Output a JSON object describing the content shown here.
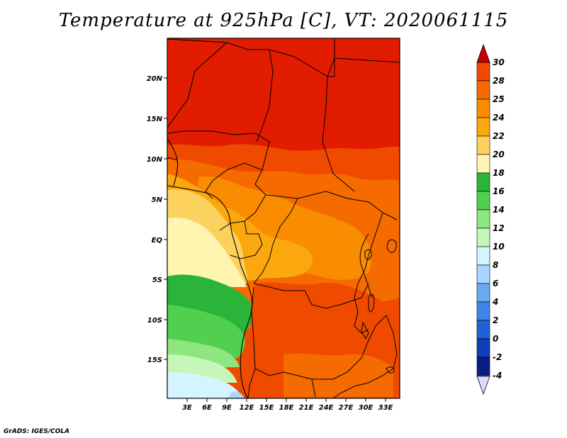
{
  "title": "Temperature at 925hPa [C], VT: 2020061115",
  "credit": "GrADS: IGES/COLA",
  "map": {
    "lat_labels": [
      "20N",
      "15N",
      "10N",
      "5N",
      "EQ",
      "5S",
      "10S",
      "15S"
    ],
    "lon_labels": [
      "3E",
      "6E",
      "9E",
      "12E",
      "15E",
      "18E",
      "21E",
      "24E",
      "27E",
      "30E",
      "33E"
    ]
  },
  "colorbar": {
    "levels": [
      "30",
      "28",
      "25",
      "24",
      "22",
      "20",
      "18",
      "16",
      "14",
      "12",
      "10",
      "8",
      "6",
      "4",
      "2",
      "0",
      "-2",
      "-4"
    ],
    "colors": [
      "#e11c00",
      "#f04a00",
      "#f56b00",
      "#f98c00",
      "#fba80e",
      "#fdd15e",
      "#fff5b0",
      "#2bb43a",
      "#51d04f",
      "#8fe57f",
      "#c4f7b8",
      "#d4f5ff",
      "#a8d6ff",
      "#6aaaf5",
      "#3e86ea",
      "#1e62d6",
      "#0e3fb8",
      "#0a1c86",
      "#000060"
    ],
    "top_color": "#c80000",
    "bottom_color": "#dadafc"
  }
}
